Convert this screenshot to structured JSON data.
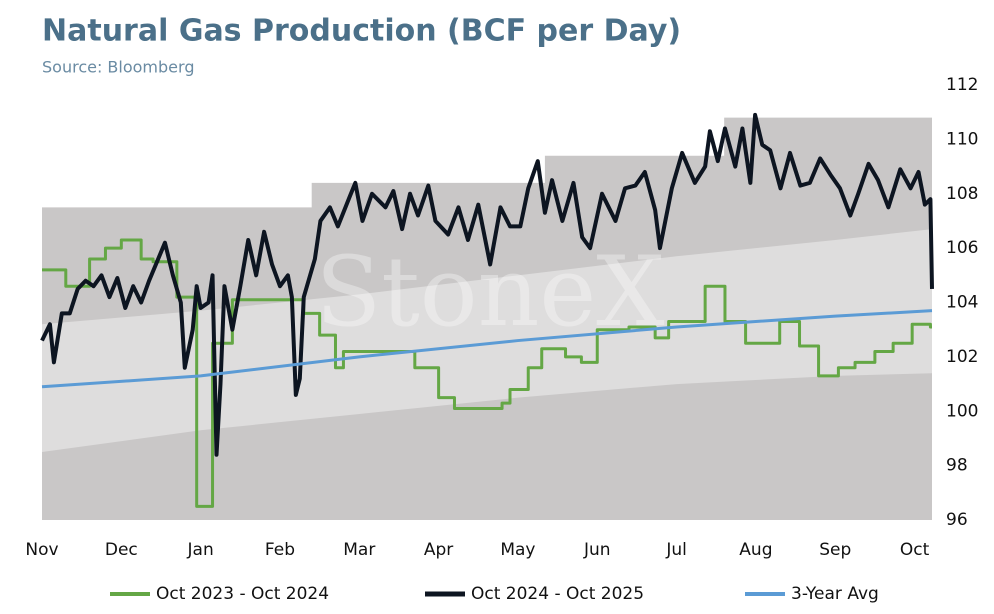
{
  "chart_data": {
    "type": "line",
    "title": "Natural Gas Production (BCF per Day)",
    "subtitle": "Source: Bloomberg",
    "watermark": "StoneX",
    "xlim": [
      0,
      11.22
    ],
    "xticks": [
      {
        "value": 0,
        "label": "Nov"
      },
      {
        "value": 1,
        "label": "Dec"
      },
      {
        "value": 2,
        "label": "Jan"
      },
      {
        "value": 3,
        "label": "Feb"
      },
      {
        "value": 4,
        "label": "Mar"
      },
      {
        "value": 5,
        "label": "Apr"
      },
      {
        "value": 6,
        "label": "May"
      },
      {
        "value": 7,
        "label": "Jun"
      },
      {
        "value": 8,
        "label": "Jul"
      },
      {
        "value": 9,
        "label": "Aug"
      },
      {
        "value": 10,
        "label": "Sep"
      },
      {
        "value": 11,
        "label": "Oct"
      }
    ],
    "ylim": [
      96,
      112
    ],
    "yticks": [
      96,
      98,
      100,
      102,
      104,
      106,
      108,
      110,
      112
    ],
    "grid": false,
    "legend": "bottom",
    "band_max": {
      "color": "#c9c7c7",
      "x": [
        0,
        3.4,
        3.4,
        6.34,
        6.34,
        8.6,
        8.6,
        11.22
      ],
      "values": [
        107.5,
        107.5,
        108.4,
        108.4,
        109.4,
        109.4,
        110.8,
        110.8
      ]
    },
    "band_inner": {
      "color": "#dedddd",
      "x": [
        0,
        2,
        4,
        6,
        8,
        10,
        11.22
      ],
      "upper": [
        103.2,
        103.7,
        104.3,
        105.0,
        105.7,
        106.3,
        106.7
      ],
      "lower": [
        98.5,
        99.3,
        99.9,
        100.5,
        101.0,
        101.3,
        101.4
      ]
    },
    "series": [
      {
        "name": "Oct 2023 - Oct 2024",
        "color": "#64a745",
        "width": 3,
        "x": [
          0,
          0.3,
          0.3,
          0.6,
          0.6,
          0.8,
          0.8,
          1.0,
          1.0,
          1.25,
          1.25,
          1.4,
          1.4,
          1.7,
          1.7,
          1.95,
          1.95,
          2.15,
          2.15,
          2.4,
          2.4,
          3.3,
          3.3,
          3.5,
          3.5,
          3.7,
          3.7,
          3.8,
          3.8,
          4.7,
          4.7,
          5.0,
          5.0,
          5.2,
          5.2,
          5.8,
          5.8,
          5.9,
          5.9,
          6.13,
          6.13,
          6.3,
          6.3,
          6.6,
          6.6,
          6.8,
          6.8,
          7.0,
          7.0,
          7.4,
          7.4,
          7.73,
          7.73,
          7.9,
          7.9,
          8.36,
          8.36,
          8.61,
          8.61,
          8.87,
          8.87,
          9.3,
          9.3,
          9.55,
          9.55,
          9.79,
          9.79,
          10.04,
          10.04,
          10.25,
          10.25,
          10.5,
          10.5,
          10.73,
          10.73,
          10.97,
          10.97,
          11.2,
          11.2,
          11.22
        ],
        "values": [
          105.2,
          105.2,
          104.6,
          104.6,
          105.6,
          105.6,
          106.0,
          106.0,
          106.3,
          106.3,
          105.6,
          105.6,
          105.5,
          105.5,
          104.2,
          104.2,
          96.5,
          96.5,
          102.5,
          102.5,
          104.1,
          104.1,
          103.6,
          103.6,
          102.8,
          102.8,
          101.6,
          101.6,
          102.2,
          102.2,
          101.6,
          101.6,
          100.5,
          100.5,
          100.1,
          100.1,
          100.3,
          100.3,
          100.8,
          100.8,
          101.6,
          101.6,
          102.3,
          102.3,
          102.0,
          102.0,
          101.8,
          101.8,
          103.0,
          103.0,
          103.1,
          103.1,
          102.7,
          102.7,
          103.3,
          103.3,
          104.6,
          104.6,
          103.3,
          103.3,
          102.5,
          102.5,
          103.3,
          103.3,
          102.4,
          102.4,
          101.3,
          101.3,
          101.6,
          101.6,
          101.8,
          101.8,
          102.2,
          102.2,
          102.5,
          102.5,
          103.2,
          103.2,
          103.1,
          103.1
        ]
      },
      {
        "name": "Oct 2024 - Oct 2025",
        "color": "#0d1521",
        "width": 4,
        "x": [
          0,
          0.1,
          0.15,
          0.25,
          0.35,
          0.45,
          0.55,
          0.65,
          0.75,
          0.85,
          0.95,
          1.05,
          1.15,
          1.25,
          1.35,
          1.45,
          1.55,
          1.65,
          1.75,
          1.8,
          1.9,
          1.95,
          2.0,
          2.1,
          2.15,
          2.2,
          2.25,
          2.3,
          2.4,
          2.5,
          2.6,
          2.7,
          2.8,
          2.9,
          3.0,
          3.1,
          3.15,
          3.2,
          3.25,
          3.3,
          3.44,
          3.51,
          3.63,
          3.73,
          3.88,
          3.95,
          4.04,
          4.16,
          4.33,
          4.43,
          4.54,
          4.64,
          4.74,
          4.87,
          4.96,
          5.12,
          5.25,
          5.37,
          5.5,
          5.65,
          5.78,
          5.9,
          6.03,
          6.13,
          6.25,
          6.34,
          6.43,
          6.56,
          6.7,
          6.81,
          6.91,
          7.06,
          7.23,
          7.35,
          7.48,
          7.6,
          7.73,
          7.79,
          7.94,
          8.07,
          8.23,
          8.36,
          8.42,
          8.52,
          8.61,
          8.74,
          8.83,
          8.93,
          8.99,
          9.08,
          9.18,
          9.31,
          9.43,
          9.56,
          9.68,
          9.81,
          9.94,
          10.06,
          10.19,
          10.29,
          10.42,
          10.54,
          10.67,
          10.82,
          10.95,
          11.05,
          11.13,
          11.2,
          11.22
        ],
        "values": [
          102.6,
          103.2,
          101.8,
          103.6,
          103.6,
          104.5,
          104.8,
          104.6,
          105.0,
          104.2,
          104.9,
          103.8,
          104.6,
          104.0,
          104.8,
          105.5,
          106.2,
          105.0,
          104.0,
          101.6,
          103.0,
          104.6,
          103.8,
          104.0,
          105.0,
          98.4,
          101.0,
          104.6,
          103.0,
          104.6,
          106.3,
          105.0,
          106.6,
          105.4,
          104.6,
          105.0,
          104.2,
          100.6,
          101.2,
          104.2,
          105.6,
          107.0,
          107.5,
          106.8,
          107.9,
          108.4,
          107.0,
          108.0,
          107.5,
          108.1,
          106.7,
          108.0,
          107.2,
          108.3,
          107.0,
          106.5,
          107.5,
          106.3,
          107.6,
          105.4,
          107.5,
          106.8,
          106.8,
          108.2,
          109.2,
          107.3,
          108.5,
          107.0,
          108.4,
          106.4,
          106.0,
          108.0,
          107.0,
          108.2,
          108.3,
          108.8,
          107.4,
          106.0,
          108.2,
          109.5,
          108.4,
          109.0,
          110.3,
          109.2,
          110.4,
          109.0,
          110.4,
          108.4,
          110.9,
          109.8,
          109.6,
          108.2,
          109.5,
          108.3,
          108.4,
          109.3,
          108.7,
          108.2,
          107.2,
          108.0,
          109.1,
          108.5,
          107.5,
          108.9,
          108.2,
          108.8,
          107.6,
          107.8,
          104.5
        ]
      },
      {
        "name": "3-Year Avg",
        "color": "#5b9bd5",
        "width": 3,
        "x": [
          0,
          2,
          4,
          6,
          8,
          10,
          11.22
        ],
        "values": [
          100.9,
          101.3,
          102.0,
          102.6,
          103.1,
          103.5,
          103.7
        ]
      }
    ]
  }
}
